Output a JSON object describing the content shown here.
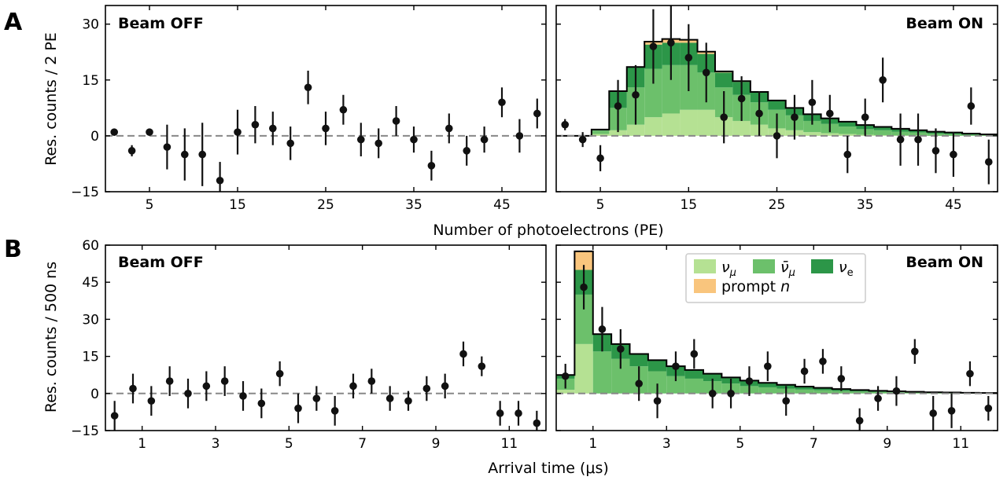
{
  "panel_labels": {
    "a": "A",
    "b": "B"
  },
  "beam_labels": {
    "off": "Beam OFF",
    "on": "Beam ON"
  },
  "axis_labels": {
    "a_ylabel": "Res. counts / 2 PE",
    "a_xlabel": "Number of photoelectrons (PE)",
    "b_ylabel": "Res. counts / 500 ns",
    "b_xlabel": "Arrival time (μs)"
  },
  "legend": {
    "numu": "ν",
    "numu_sub": "μ",
    "numubar": "ν̄",
    "numubar_sub": "μ",
    "nue": "ν",
    "nue_sub": "e",
    "prompt_pre": "prompt ",
    "prompt_n": "n"
  },
  "colors": {
    "numu": "#b5e193",
    "numubar": "#6cc06b",
    "nue": "#2c9648",
    "prompt_n": "#f9c57d",
    "points": "#111111",
    "zero_line": "#888888"
  },
  "chart_data": [
    {
      "id": "A-off",
      "type": "scatter",
      "xlabel": "Number of photoelectrons (PE)",
      "ylabel": "Res. counts / 2 PE",
      "xlim": [
        0,
        50
      ],
      "ylim": [
        -15,
        35
      ],
      "xticks": [
        "5",
        "15",
        "25",
        "35",
        "45"
      ],
      "yticks": [
        "−15",
        "0",
        "15",
        "30"
      ],
      "points": [
        {
          "x": 1,
          "y": 1,
          "e": 0
        },
        {
          "x": 3,
          "y": -4,
          "e": 1.5
        },
        {
          "x": 5,
          "y": 1,
          "e": 0
        },
        {
          "x": 7,
          "y": -3,
          "e": 6
        },
        {
          "x": 9,
          "y": -5,
          "e": 7
        },
        {
          "x": 11,
          "y": -5,
          "e": 8.5
        },
        {
          "x": 13,
          "y": -12,
          "e": 5
        },
        {
          "x": 15,
          "y": 1,
          "e": 6
        },
        {
          "x": 17,
          "y": 3,
          "e": 5
        },
        {
          "x": 19,
          "y": 2,
          "e": 4.5
        },
        {
          "x": 21,
          "y": -2,
          "e": 4.5
        },
        {
          "x": 23,
          "y": 13,
          "e": 4.5
        },
        {
          "x": 25,
          "y": 2,
          "e": 4.5
        },
        {
          "x": 27,
          "y": 7,
          "e": 4
        },
        {
          "x": 29,
          "y": -1,
          "e": 4.5
        },
        {
          "x": 31,
          "y": -2,
          "e": 4
        },
        {
          "x": 33,
          "y": 4,
          "e": 4
        },
        {
          "x": 35,
          "y": -1,
          "e": 3.5
        },
        {
          "x": 37,
          "y": -8,
          "e": 4
        },
        {
          "x": 39,
          "y": 2,
          "e": 4
        },
        {
          "x": 41,
          "y": -4,
          "e": 4
        },
        {
          "x": 43,
          "y": -1,
          "e": 3.5
        },
        {
          "x": 45,
          "y": 9,
          "e": 4
        },
        {
          "x": 47,
          "y": 0,
          "e": 4.5
        },
        {
          "x": 49,
          "y": 6,
          "e": 4
        }
      ]
    },
    {
      "id": "A-on",
      "type": "bar",
      "xlim": [
        0,
        50
      ],
      "ylim": [
        -15,
        35
      ],
      "xticks": [
        "5",
        "15",
        "25",
        "35",
        "45"
      ],
      "step_edges": [
        0,
        4,
        6,
        8,
        10,
        12,
        14,
        16,
        18,
        20,
        22,
        24,
        26,
        28,
        30,
        32,
        34,
        36,
        38,
        40,
        42,
        44,
        46,
        48,
        50
      ],
      "series": [
        {
          "key": "numu",
          "values": [
            0,
            0.5,
            1.5,
            3,
            5,
            6,
            7,
            7,
            5,
            4,
            3,
            2,
            1.5,
            1,
            0.7,
            0.5,
            0.3,
            0.2,
            0.1,
            0.1,
            0,
            0,
            0,
            0
          ]
        },
        {
          "key": "numubar",
          "values": [
            0,
            0.9,
            6,
            10,
            13,
            13,
            12,
            10,
            8,
            7,
            6,
            5,
            4,
            3,
            2.5,
            2,
            1.5,
            1.3,
            1,
            0.8,
            0.6,
            0.5,
            0.3,
            0.2
          ]
        },
        {
          "key": "nue",
          "values": [
            0,
            0.3,
            4.5,
            5.5,
            6.5,
            6,
            6,
            5,
            4,
            3.5,
            2.8,
            2.5,
            2,
            1.8,
            1.5,
            1.3,
            1.1,
            0.9,
            0.8,
            0.6,
            0.5,
            0.4,
            0.3,
            0.2
          ]
        },
        {
          "key": "prompt_n",
          "values": [
            0,
            0,
            0,
            0,
            0.8,
            1,
            0.8,
            0.6,
            0.3,
            0.2,
            0,
            0,
            0,
            0,
            0,
            0,
            0,
            0,
            0,
            0,
            0,
            0,
            0,
            0
          ]
        }
      ],
      "points": [
        {
          "x": 1,
          "y": 3,
          "e": 1.5
        },
        {
          "x": 3,
          "y": -1,
          "e": 2
        },
        {
          "x": 5,
          "y": -6,
          "e": 3.5
        },
        {
          "x": 7,
          "y": 8,
          "e": 7
        },
        {
          "x": 9,
          "y": 11,
          "e": 8
        },
        {
          "x": 11,
          "y": 24,
          "e": 10
        },
        {
          "x": 13,
          "y": 25,
          "e": 10
        },
        {
          "x": 15,
          "y": 21,
          "e": 9
        },
        {
          "x": 17,
          "y": 17,
          "e": 8
        },
        {
          "x": 19,
          "y": 5,
          "e": 7
        },
        {
          "x": 21,
          "y": 10,
          "e": 6
        },
        {
          "x": 23,
          "y": 6,
          "e": 6
        },
        {
          "x": 25,
          "y": 0,
          "e": 6
        },
        {
          "x": 27,
          "y": 5,
          "e": 6
        },
        {
          "x": 29,
          "y": 9,
          "e": 6
        },
        {
          "x": 31,
          "y": 6,
          "e": 5
        },
        {
          "x": 33,
          "y": -5,
          "e": 5
        },
        {
          "x": 35,
          "y": 5,
          "e": 5
        },
        {
          "x": 37,
          "y": 15,
          "e": 6
        },
        {
          "x": 39,
          "y": -1,
          "e": 7
        },
        {
          "x": 41,
          "y": -1,
          "e": 7
        },
        {
          "x": 43,
          "y": -4,
          "e": 6
        },
        {
          "x": 45,
          "y": -5,
          "e": 6
        },
        {
          "x": 47,
          "y": 8,
          "e": 5
        },
        {
          "x": 49,
          "y": -7,
          "e": 6
        }
      ]
    },
    {
      "id": "B-off",
      "type": "scatter",
      "xlabel": "Arrival time (μs)",
      "ylabel": "Res. counts / 500 ns",
      "xlim": [
        0,
        12
      ],
      "ylim": [
        -15,
        60
      ],
      "xticks": [
        "1",
        "3",
        "5",
        "7",
        "9",
        "11"
      ],
      "yticks": [
        "−15",
        "0",
        "15",
        "30",
        "45",
        "60"
      ],
      "points": [
        {
          "x": 0.25,
          "y": -9,
          "e": 6
        },
        {
          "x": 0.75,
          "y": 2,
          "e": 6
        },
        {
          "x": 1.25,
          "y": -3,
          "e": 6
        },
        {
          "x": 1.75,
          "y": 5,
          "e": 6
        },
        {
          "x": 2.25,
          "y": 0,
          "e": 6
        },
        {
          "x": 2.75,
          "y": 3,
          "e": 6
        },
        {
          "x": 3.25,
          "y": 5,
          "e": 6
        },
        {
          "x": 3.75,
          "y": -1,
          "e": 6
        },
        {
          "x": 4.25,
          "y": -4,
          "e": 6
        },
        {
          "x": 4.75,
          "y": 8,
          "e": 5
        },
        {
          "x": 5.25,
          "y": -6,
          "e": 6
        },
        {
          "x": 5.75,
          "y": -2,
          "e": 5
        },
        {
          "x": 6.25,
          "y": -7,
          "e": 6
        },
        {
          "x": 6.75,
          "y": 3,
          "e": 5
        },
        {
          "x": 7.25,
          "y": 5,
          "e": 5
        },
        {
          "x": 7.75,
          "y": -2,
          "e": 5
        },
        {
          "x": 8.25,
          "y": -3,
          "e": 4
        },
        {
          "x": 8.75,
          "y": 2,
          "e": 5
        },
        {
          "x": 9.25,
          "y": 3,
          "e": 5
        },
        {
          "x": 9.75,
          "y": 16,
          "e": 5
        },
        {
          "x": 10.25,
          "y": 11,
          "e": 4
        },
        {
          "x": 10.75,
          "y": -8,
          "e": 5
        },
        {
          "x": 11.25,
          "y": -8,
          "e": 5
        },
        {
          "x": 11.75,
          "y": -12,
          "e": 5
        }
      ]
    },
    {
      "id": "B-on",
      "type": "bar",
      "xlim": [
        0,
        12
      ],
      "ylim": [
        -15,
        60
      ],
      "xticks": [
        "1",
        "3",
        "5",
        "7",
        "9",
        "11"
      ],
      "step_edges": [
        0,
        0.5,
        1,
        1.5,
        2,
        2.5,
        3,
        3.5,
        4,
        4.5,
        5,
        5.5,
        6,
        6.5,
        7,
        7.5,
        8,
        8.5,
        9,
        9.5,
        10,
        10.5,
        11,
        11.5,
        12
      ],
      "series": [
        {
          "key": "numu",
          "values": [
            1.5,
            20,
            0,
            0,
            0,
            0,
            0,
            0,
            0,
            0,
            0,
            0,
            0,
            0,
            0,
            0,
            0,
            0,
            0,
            0,
            0,
            0,
            0,
            0
          ]
        },
        {
          "key": "numubar",
          "values": [
            4.5,
            20,
            17,
            14,
            11,
            9,
            7,
            6,
            5,
            4,
            3,
            2.5,
            2,
            1.6,
            1.3,
            1,
            0.8,
            0.6,
            0.5,
            0.4,
            0.3,
            0.2,
            0.2,
            0.1
          ]
        },
        {
          "key": "nue",
          "values": [
            1.5,
            10,
            7,
            6,
            5,
            4.5,
            4,
            3.5,
            3,
            2.5,
            2.2,
            1.8,
            1.5,
            1.2,
            1,
            0.8,
            0.6,
            0.5,
            0.4,
            0.3,
            0.2,
            0.2,
            0.1,
            0.1
          ]
        },
        {
          "key": "prompt_n",
          "values": [
            0,
            7.5,
            0,
            0,
            0,
            0,
            0,
            0,
            0,
            0,
            0,
            0,
            0,
            0,
            0,
            0,
            0,
            0,
            0,
            0,
            0,
            0,
            0,
            0
          ]
        }
      ],
      "points": [
        {
          "x": 0.25,
          "y": 7,
          "e": 5
        },
        {
          "x": 0.75,
          "y": 43,
          "e": 9
        },
        {
          "x": 1.25,
          "y": 26,
          "e": 9
        },
        {
          "x": 1.75,
          "y": 18,
          "e": 8
        },
        {
          "x": 2.25,
          "y": 4,
          "e": 7
        },
        {
          "x": 2.75,
          "y": -3,
          "e": 7
        },
        {
          "x": 3.25,
          "y": 11,
          "e": 6
        },
        {
          "x": 3.75,
          "y": 16,
          "e": 6
        },
        {
          "x": 4.25,
          "y": 0,
          "e": 6
        },
        {
          "x": 4.75,
          "y": 0,
          "e": 6
        },
        {
          "x": 5.25,
          "y": 5,
          "e": 6
        },
        {
          "x": 5.75,
          "y": 11,
          "e": 6
        },
        {
          "x": 6.25,
          "y": -3,
          "e": 6
        },
        {
          "x": 6.75,
          "y": 9,
          "e": 5
        },
        {
          "x": 7.25,
          "y": 13,
          "e": 5
        },
        {
          "x": 7.75,
          "y": 6,
          "e": 5
        },
        {
          "x": 8.25,
          "y": -11,
          "e": 5
        },
        {
          "x": 8.75,
          "y": -2,
          "e": 5
        },
        {
          "x": 9.25,
          "y": 1,
          "e": 6
        },
        {
          "x": 9.75,
          "y": 17,
          "e": 5
        },
        {
          "x": 10.25,
          "y": -8,
          "e": 7
        },
        {
          "x": 10.75,
          "y": -7,
          "e": 7
        },
        {
          "x": 11.25,
          "y": 8,
          "e": 5
        },
        {
          "x": 11.75,
          "y": -6,
          "e": 5
        }
      ]
    }
  ]
}
